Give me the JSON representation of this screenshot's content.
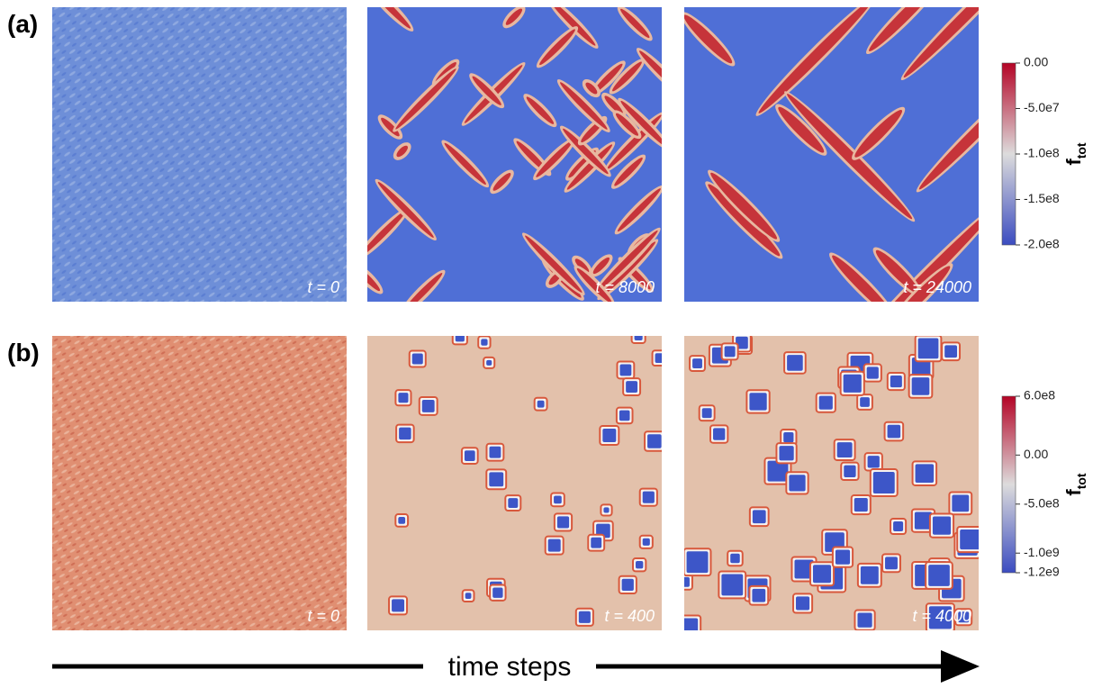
{
  "figure": {
    "rows": [
      {
        "label": "(a)",
        "panels": [
          {
            "time": "t = 0"
          },
          {
            "time": "t = 8000"
          },
          {
            "time": "t = 24000"
          }
        ],
        "colorbar": {
          "title": "f",
          "title_sub": "tot",
          "range": [
            -200000000,
            0
          ],
          "ticks": [
            {
              "value": 0,
              "label": "0.00"
            },
            {
              "value": -50000000,
              "label": "-5.0e7"
            },
            {
              "value": -100000000,
              "label": "-1.0e8"
            },
            {
              "value": -150000000,
              "label": "-1.5e8"
            },
            {
              "value": -200000000,
              "label": "-2.0e8"
            }
          ]
        }
      },
      {
        "label": "(b)",
        "panels": [
          {
            "time": "t = 0"
          },
          {
            "time": "t = 400"
          },
          {
            "time": "t = 4000"
          }
        ],
        "colorbar": {
          "title": "f",
          "title_sub": "tot",
          "range": [
            -1200000000,
            600000000
          ],
          "ticks": [
            {
              "value": 600000000,
              "label": "6.0e8"
            },
            {
              "value": 0,
              "label": "0.00"
            },
            {
              "value": -500000000,
              "label": "-5.0e8"
            },
            {
              "value": -1000000000,
              "label": "-1.0e9"
            },
            {
              "value": -1200000000,
              "label": "-1.2e9"
            }
          ]
        }
      }
    ],
    "axis_label": "time steps"
  }
}
